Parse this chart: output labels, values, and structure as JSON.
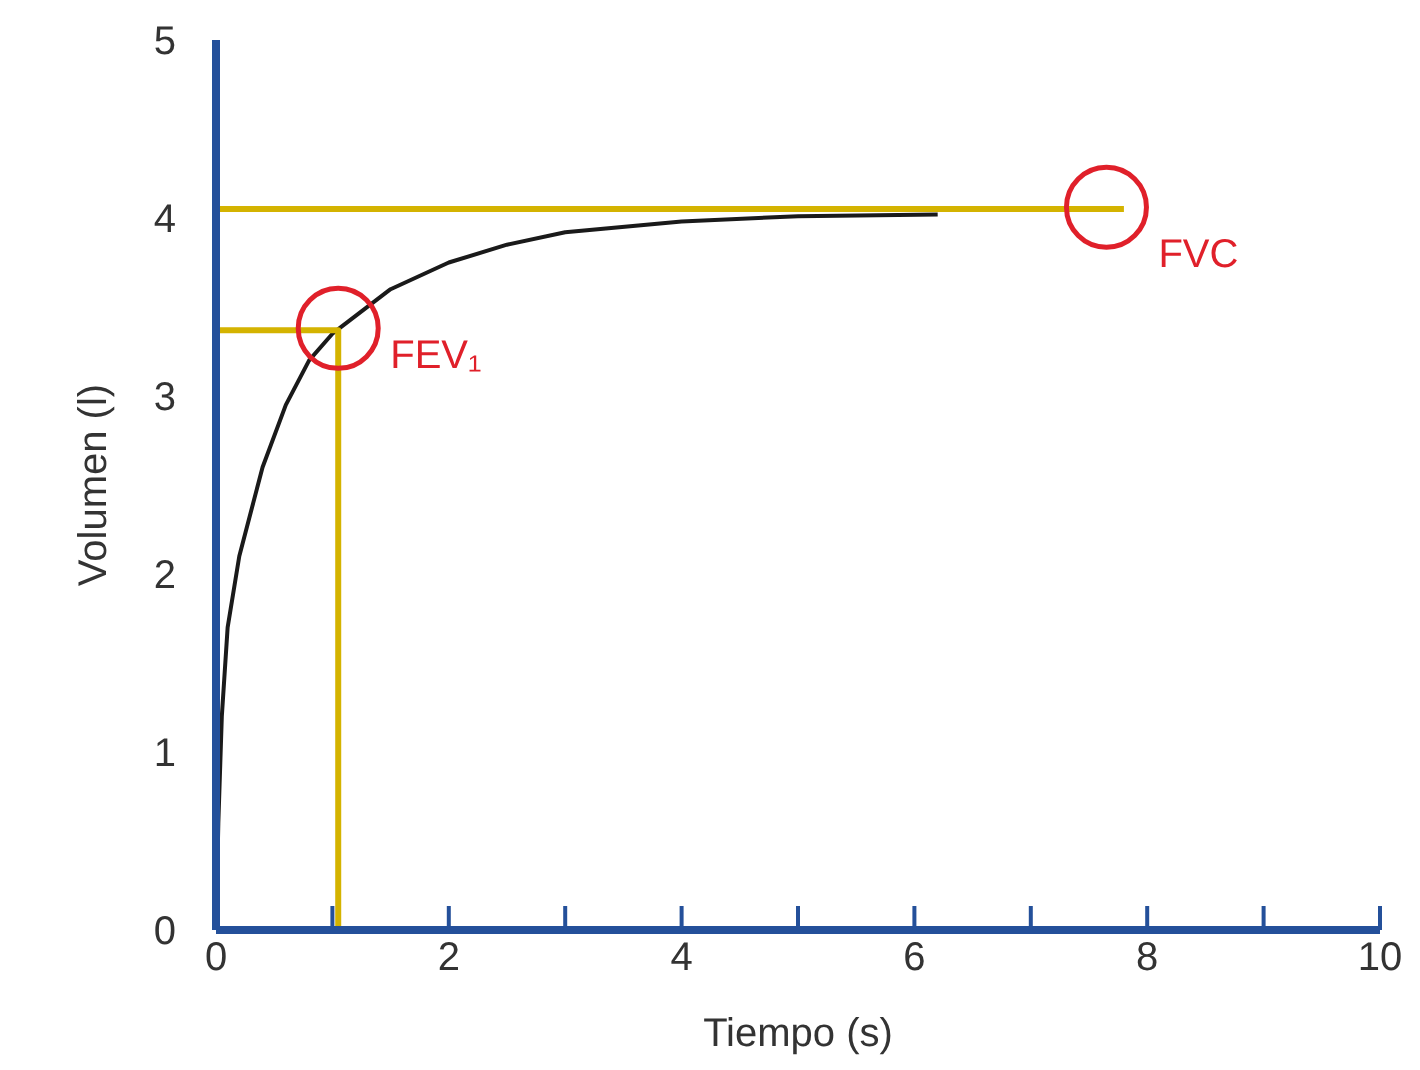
{
  "chart_data": {
    "type": "line",
    "xlabel": "Tiempo (s)",
    "ylabel": "Volumen (l)",
    "xlim": [
      0,
      10
    ],
    "ylim": [
      0,
      5
    ],
    "xticks": [
      0,
      {
        "value": 1,
        "label": null
      },
      2,
      {
        "value": 3,
        "label": null
      },
      4,
      {
        "value": 5,
        "label": null
      },
      6,
      {
        "value": 7,
        "label": null
      },
      8,
      {
        "value": 9,
        "label": null
      },
      10
    ],
    "yticks": [
      0,
      1,
      2,
      3,
      4,
      5
    ],
    "grid": false,
    "marker": "none",
    "line_style": "solid",
    "series": [
      {
        "color": "#1a1a1a",
        "x": [
          0,
          0.02,
          0.05,
          0.1,
          0.2,
          0.4,
          0.6,
          0.8,
          1.0,
          1.5,
          2,
          2.5,
          3,
          4,
          5,
          6.2
        ],
        "values": [
          0,
          0.6,
          1.2,
          1.7,
          2.1,
          2.6,
          2.95,
          3.2,
          3.35,
          3.6,
          3.75,
          3.85,
          3.92,
          3.98,
          4.01,
          4.02
        ]
      },
      {
        "color": "#d4b300",
        "x": [
          0,
          7.8
        ],
        "values": [
          4.05,
          4.05
        ]
      },
      {
        "color": "#d4b300",
        "x": [
          0,
          1.05,
          1.05
        ],
        "values": [
          3.37,
          3.37,
          0
        ]
      }
    ],
    "annotations": [
      {
        "text": "FEV₁",
        "x": 1.05,
        "y": 3.38
      },
      {
        "text": "FVC",
        "x": 7.65,
        "y": 4.06
      }
    ]
  }
}
